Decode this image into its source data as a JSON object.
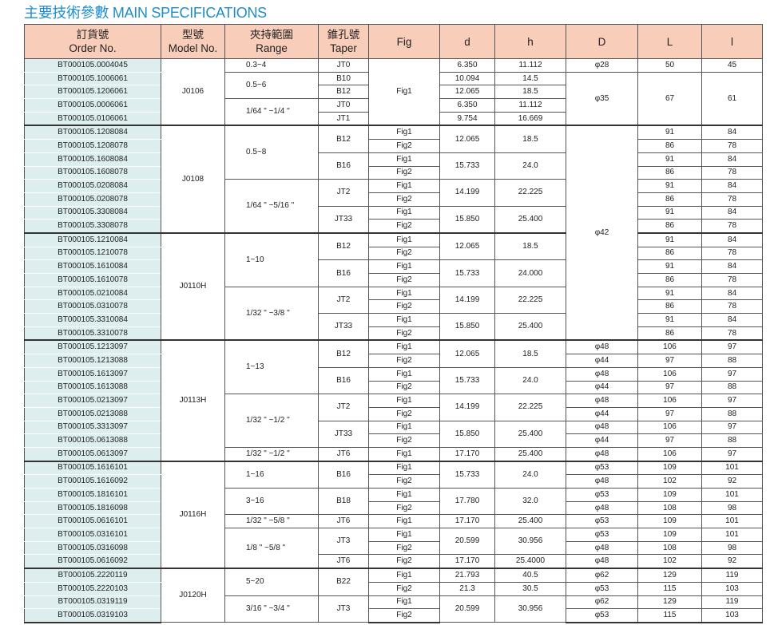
{
  "title": "主要技術參數  MAIN SPECIFICATIONS",
  "headers": [
    [
      "訂貨號",
      "Order No."
    ],
    [
      "型號",
      "Model No."
    ],
    [
      "夾持範圍",
      "Range"
    ],
    [
      "錐孔號",
      "Taper"
    ],
    [
      "Fig",
      ""
    ],
    [
      "d",
      ""
    ],
    [
      "h",
      ""
    ],
    [
      "D",
      ""
    ],
    [
      "L",
      ""
    ],
    [
      "l",
      ""
    ]
  ],
  "rows": [
    [
      "BT000105.0004045",
      "J0106",
      "0.3~4",
      "JT0",
      "Fig1",
      "6.350",
      "11.112",
      "φ28",
      "50",
      "45"
    ],
    [
      "BT000105.1006061",
      null,
      "0.5~6",
      "B10",
      null,
      "10.094",
      "14.5",
      "φ35",
      "67",
      "61"
    ],
    [
      "BT000105.1206061",
      null,
      null,
      "B12",
      null,
      "12.065",
      "18.5",
      null,
      null,
      null
    ],
    [
      "BT000105.0006061",
      null,
      "1/64 \" ~1/4 \"",
      "JT0",
      null,
      "6.350",
      "11.112",
      null,
      null,
      null
    ],
    [
      "BT000105.0106061",
      null,
      null,
      "JT1",
      null,
      "9.754",
      "16.669",
      null,
      null,
      null
    ],
    [
      "BT000105.1208084",
      "J0108",
      "0.5~8",
      "B12",
      "Fig1",
      "12.065",
      "18.5",
      "φ42",
      "91",
      "84"
    ],
    [
      "BT000105.1208078",
      null,
      null,
      null,
      "Fig2",
      null,
      null,
      null,
      "86",
      "78"
    ],
    [
      "BT000105.1608084",
      null,
      null,
      "B16",
      "Fig1",
      "15.733",
      "24.0",
      null,
      "91",
      "84"
    ],
    [
      "BT000105.1608078",
      null,
      null,
      null,
      "Fig2",
      null,
      null,
      null,
      "86",
      "78"
    ],
    [
      "BT000105.0208084",
      null,
      "1/64 \" ~5/16 \"",
      "JT2",
      "Fig1",
      "14.199",
      "22.225",
      null,
      "91",
      "84"
    ],
    [
      "BT000105.0208078",
      null,
      null,
      null,
      "Fig2",
      null,
      null,
      null,
      "86",
      "78"
    ],
    [
      "BT000105.3308084",
      null,
      null,
      "JT33",
      "Fig1",
      "15.850",
      "25.400",
      null,
      "91",
      "84"
    ],
    [
      "BT000105.3308078",
      null,
      null,
      null,
      "Fig2",
      null,
      null,
      null,
      "86",
      "78"
    ],
    [
      "BT000105.1210084",
      "J0110H",
      "1~10",
      "B12",
      "Fig1",
      "12.065",
      "18.5",
      null,
      "91",
      "84"
    ],
    [
      "BT000105.1210078",
      null,
      null,
      null,
      "Fig2",
      null,
      null,
      null,
      "86",
      "78"
    ],
    [
      "BT000105.1610084",
      null,
      null,
      "B16",
      "Fig1",
      "15.733",
      "24.000",
      null,
      "91",
      "84"
    ],
    [
      "BT000105.1610078",
      null,
      null,
      null,
      "Fig2",
      null,
      null,
      null,
      "86",
      "78"
    ],
    [
      "BT000105.0210084",
      null,
      "1/32 \" ~3/8 \"",
      "JT2",
      "Fig1",
      "14.199",
      "22.225",
      null,
      "91",
      "84"
    ],
    [
      "BT000105.0310078",
      null,
      null,
      null,
      "Fig2",
      null,
      null,
      null,
      "86",
      "78"
    ],
    [
      "BT000105.3310084",
      null,
      null,
      "JT33",
      "Fig1",
      "15.850",
      "25.400",
      null,
      "91",
      "84"
    ],
    [
      "BT000105.3310078",
      null,
      null,
      null,
      "Fig2",
      null,
      null,
      null,
      "86",
      "78"
    ],
    [
      "BT000105.1213097",
      "J0113H",
      "1~13",
      "B12",
      "Fig1",
      "12.065",
      "18.5",
      "φ48",
      "106",
      "97"
    ],
    [
      "BT000105.1213088",
      null,
      null,
      null,
      "Fig2",
      null,
      null,
      "φ44",
      "97",
      "88"
    ],
    [
      "BT000105.1613097",
      null,
      null,
      "B16",
      "Fig1",
      "15.733",
      "24.0",
      "φ48",
      "106",
      "97"
    ],
    [
      "BT000105.1613088",
      null,
      null,
      null,
      "Fig2",
      null,
      null,
      "φ44",
      "97",
      "88"
    ],
    [
      "BT000105.0213097",
      null,
      "1/32 \" ~1/2 \"",
      "JT2",
      "Fig1",
      "14.199",
      "22.225",
      "φ48",
      "106",
      "97"
    ],
    [
      "BT000105.0213088",
      null,
      null,
      null,
      "Fig2",
      null,
      null,
      "φ44",
      "97",
      "88"
    ],
    [
      "BT000105.3313097",
      null,
      null,
      "JT33",
      "Fig1",
      "15.850",
      "25.400",
      "φ48",
      "106",
      "97"
    ],
    [
      "BT000105.0613088",
      null,
      null,
      null,
      "Fig2",
      null,
      null,
      "φ44",
      "97",
      "88"
    ],
    [
      "BT000105.0613097",
      null,
      "1/32 \" ~1/2 \"",
      "JT6",
      "Fig1",
      "17.170",
      "25.400",
      "φ48",
      "106",
      "97"
    ],
    [
      "BT000105.1616101",
      "J0116H",
      "1~16",
      "B16",
      "Fig1",
      "15.733",
      "24.0",
      "φ53",
      "109",
      "101"
    ],
    [
      "BT000105.1616092",
      null,
      null,
      null,
      "Fig2",
      null,
      null,
      "φ48",
      "102",
      "92"
    ],
    [
      "BT000105.1816101",
      null,
      "3~16",
      "B18",
      "Fig1",
      "17.780",
      "32.0",
      "φ53",
      "109",
      "101"
    ],
    [
      "BT000105.1816098",
      null,
      null,
      null,
      "Fig2",
      null,
      null,
      "φ48",
      "108",
      "98"
    ],
    [
      "BT000105.0616101",
      null,
      "1/32 \" ~5/8 \"",
      "JT6",
      "Fig1",
      "17.170",
      "25.400",
      "φ53",
      "109",
      "101"
    ],
    [
      "BT000105.0316101",
      null,
      "1/8 \" ~5/8 \"",
      "JT3",
      "Fig1",
      "20.599",
      "30.956",
      "φ53",
      "109",
      "101"
    ],
    [
      "BT000105.0316098",
      null,
      null,
      null,
      "Fig2",
      null,
      null,
      "φ48",
      "108",
      "98"
    ],
    [
      "BT000105.0616092",
      null,
      null,
      "JT6",
      "Fig2",
      "17.170",
      "25.4000",
      "φ48",
      "102",
      "92"
    ],
    [
      "BT000105.2220119",
      "J0120H",
      "5~20",
      "B22",
      "Fig1",
      "21.793",
      "40.5",
      "φ62",
      "129",
      "119"
    ],
    [
      "BT000105.2220103",
      null,
      null,
      null,
      "Fig2",
      "21.3",
      "30.5",
      "φ53",
      "115",
      "103"
    ],
    [
      "BT000105.0319119",
      null,
      "3/16 \" ~3/4 \"",
      "JT3",
      "Fig1",
      "20.599",
      "30.956",
      "φ62",
      "129",
      "119"
    ],
    [
      "BT000105.0319103",
      null,
      null,
      null,
      "Fig2",
      null,
      null,
      "φ53",
      "115",
      "103"
    ]
  ]
}
